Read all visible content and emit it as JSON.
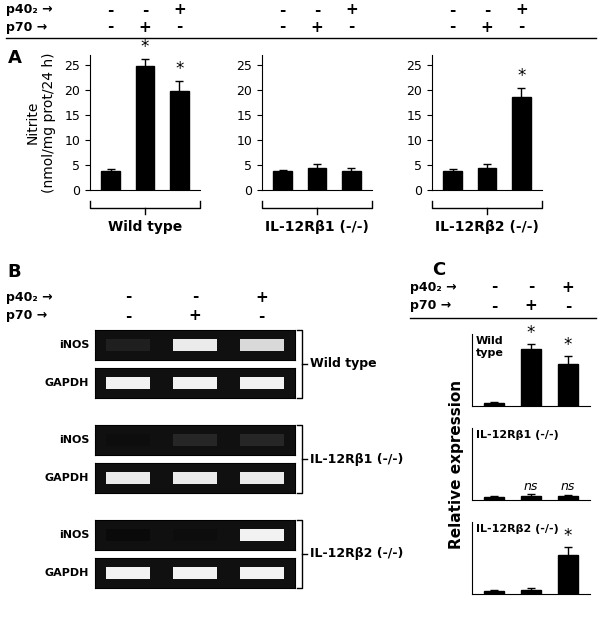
{
  "chart_data": [
    {
      "type": "bar",
      "x_label": "Wild type",
      "y_label": "Nitrite\n(nmol/mg prot/24 h)",
      "categories": [
        null,
        null,
        null
      ],
      "values": [
        3.8,
        24.8,
        19.8
      ],
      "errors": [
        0.5,
        1.5,
        2.0
      ],
      "annotations": [
        null,
        "*",
        "*"
      ],
      "color": "#000000",
      "ylim": [
        0,
        27
      ],
      "yticks": [
        0,
        5,
        10,
        15,
        20,
        25
      ],
      "tick_labels": "y"
    },
    {
      "type": "bar",
      "x_label": "IL-12Rβ1 (-/-)",
      "categories": [
        null,
        null,
        null
      ],
      "values": [
        3.8,
        4.5,
        3.9
      ],
      "errors": [
        0.3,
        0.7,
        0.6
      ],
      "annotations": [
        null,
        null,
        null
      ],
      "color": "#000000",
      "ylim": [
        0,
        27
      ],
      "yticks": [
        0,
        5,
        10,
        15,
        20,
        25
      ],
      "tick_labels": "y"
    },
    {
      "type": "bar",
      "x_label": "IL-12Rβ2 (-/-)",
      "categories": [
        null,
        null,
        null
      ],
      "values": [
        3.8,
        4.5,
        18.6
      ],
      "errors": [
        0.4,
        0.7,
        1.8
      ],
      "annotations": [
        null,
        null,
        "*"
      ],
      "color": "#000000",
      "ylim": [
        0,
        27
      ],
      "yticks": [
        0,
        5,
        10,
        15,
        20,
        25
      ],
      "tick_labels": "y"
    },
    {
      "type": "bar",
      "title": "Wild\ntype",
      "categories": [
        null,
        null,
        null
      ],
      "values": [
        1.0,
        17.5,
        12.8
      ],
      "errors": [
        0.1,
        1.5,
        2.5
      ],
      "annotations": [
        null,
        "*",
        "*"
      ],
      "color": "#000000",
      "ylim": [
        0,
        22
      ],
      "tick_labels": false
    },
    {
      "type": "bar",
      "title": "IL-12Rβ1 (-/-)",
      "y_label": "Relative expression",
      "categories": [
        null,
        null,
        null
      ],
      "values": [
        1.0,
        1.3,
        1.2
      ],
      "errors": [
        0.1,
        0.5,
        0.4
      ],
      "annotations": [
        null,
        "ns",
        "ns"
      ],
      "color": "#000000",
      "ylim": [
        0,
        22
      ],
      "tick_labels": false
    },
    {
      "type": "bar",
      "title": "IL-12Rβ2 (-/-)",
      "categories": [
        null,
        null,
        null
      ],
      "values": [
        1.0,
        1.2,
        12.0
      ],
      "errors": [
        0.1,
        0.6,
        2.5
      ],
      "annotations": [
        null,
        null,
        "*"
      ],
      "color": "#000000",
      "ylim": [
        0,
        22
      ],
      "tick_labels": false
    }
  ],
  "panels": [
    {
      "label": "A",
      "treatments": [
        {
          "name": "p40₂ →",
          "marks": [
            "-",
            "-",
            "+",
            "-",
            "-",
            "+",
            "-",
            "-",
            "+"
          ]
        },
        {
          "name": "p70 →",
          "marks": [
            "-",
            "+",
            "-",
            "-",
            "+",
            "-",
            "-",
            "+",
            "-"
          ]
        }
      ]
    },
    {
      "label": "B",
      "treatments": [
        {
          "name": "p40₂ →",
          "marks": [
            "-",
            "-",
            "+"
          ]
        },
        {
          "name": "p70 →",
          "marks": [
            "-",
            "+",
            "-"
          ]
        }
      ],
      "gels": [
        {
          "group": "Wild type",
          "rows": [
            {
              "label": "iNOS",
              "bands": [
                0.12,
                0.92,
                0.85
              ]
            },
            {
              "label": "GAPDH",
              "bands": [
                0.95,
                0.95,
                0.95
              ]
            }
          ]
        },
        {
          "group": "IL-12Rβ1 (-/-)",
          "rows": [
            {
              "label": "iNOS",
              "bands": [
                0.05,
                0.15,
                0.15
              ]
            },
            {
              "label": "GAPDH",
              "bands": [
                0.92,
                0.92,
                0.92
              ]
            }
          ]
        },
        {
          "group": "IL-12Rβ2 (-/-)",
          "rows": [
            {
              "label": "iNOS",
              "bands": [
                0.04,
                0.05,
                0.95
              ]
            },
            {
              "label": "GAPDH",
              "bands": [
                0.95,
                0.95,
                0.95
              ]
            }
          ]
        }
      ]
    },
    {
      "label": "C",
      "treatments": [
        {
          "name": "p40₂ →",
          "marks": [
            "-",
            "-",
            "+"
          ]
        },
        {
          "name": "p70 →",
          "marks": [
            "-",
            "+",
            "-"
          ]
        }
      ]
    }
  ]
}
